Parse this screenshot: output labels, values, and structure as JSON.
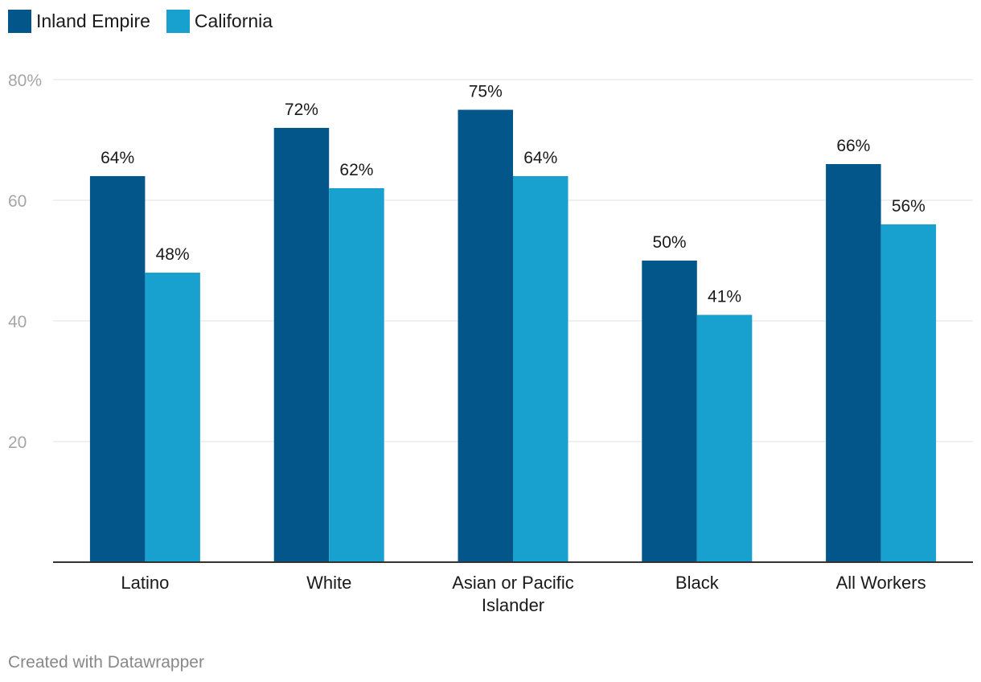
{
  "chart_data": {
    "type": "bar",
    "categories": [
      "Latino",
      "White",
      "Asian or Pacific Islander",
      "Black",
      "All Workers"
    ],
    "category_lines": [
      [
        "Latino"
      ],
      [
        "White"
      ],
      [
        "Asian or Pacific",
        "Islander"
      ],
      [
        "Black"
      ],
      [
        "All Workers"
      ]
    ],
    "series": [
      {
        "name": "Inland Empire",
        "color": "#03568a",
        "values": [
          64,
          72,
          75,
          50,
          66
        ],
        "labels": [
          "64%",
          "72%",
          "75%",
          "50%",
          "66%"
        ]
      },
      {
        "name": "California",
        "color": "#18a1cf",
        "values": [
          48,
          62,
          64,
          41,
          56
        ],
        "labels": [
          "48%",
          "62%",
          "64%",
          "41%",
          "56%"
        ]
      }
    ],
    "ylim": [
      0,
      80
    ],
    "yticks": [
      20,
      40,
      60,
      80
    ],
    "ytick_labels": [
      "20",
      "40",
      "60",
      "80%"
    ],
    "grid": true,
    "legend": "top-left",
    "title": "",
    "xlabel": "",
    "ylabel": ""
  },
  "footer": {
    "credit": "Created with Datawrapper"
  }
}
